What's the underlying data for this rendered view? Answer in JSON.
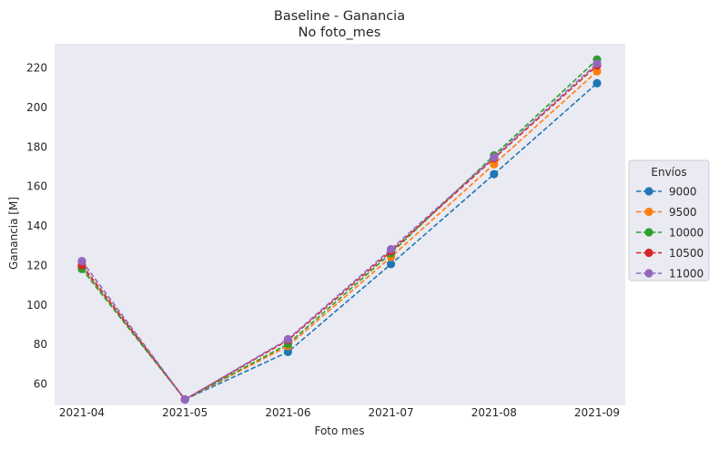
{
  "chart_data": {
    "type": "line",
    "title": "Baseline - Ganancia",
    "subtitle": "No foto_mes",
    "xlabel": "Foto mes",
    "ylabel": "Ganancia [M]",
    "categories": [
      "2021-04",
      "2021-05",
      "2021-06",
      "2021-07",
      "2021-08",
      "2021-09"
    ],
    "ylim": [
      49,
      232
    ],
    "yticks": [
      60,
      80,
      100,
      120,
      140,
      160,
      180,
      200,
      220
    ],
    "grid": false,
    "legend": {
      "title": "Envíos",
      "placement": "center-right"
    },
    "line_style": "dashed",
    "marker": "circle",
    "series": [
      {
        "name": "9000",
        "color": "#1f77b4",
        "values": [
          119,
          52,
          76,
          120.5,
          166,
          212
        ]
      },
      {
        "name": "9500",
        "color": "#ff7f0e",
        "values": [
          118.5,
          52,
          79,
          124,
          171,
          218
        ]
      },
      {
        "name": "10000",
        "color": "#2ca02c",
        "values": [
          118,
          52,
          80,
          126,
          175.5,
          224
        ]
      },
      {
        "name": "10500",
        "color": "#d62728",
        "values": [
          120,
          52,
          82,
          127,
          174,
          221
        ]
      },
      {
        "name": "11000",
        "color": "#9467bd",
        "values": [
          122,
          52,
          82.5,
          128,
          174.5,
          222
        ]
      }
    ]
  }
}
